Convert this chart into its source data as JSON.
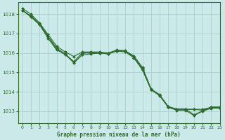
{
  "title": "Graphe pression niveau de la mer (hPa)",
  "background_color": "#cce9e9",
  "grid_color": "#add4d4",
  "line_color": "#2d6b2d",
  "marker_color": "#2d6b2d",
  "xlim": [
    -0.5,
    23
  ],
  "ylim": [
    1012.4,
    1018.6
  ],
  "yticks": [
    1013,
    1014,
    1015,
    1016,
    1017,
    1018
  ],
  "xticks": [
    0,
    1,
    2,
    3,
    4,
    5,
    6,
    7,
    8,
    9,
    10,
    11,
    12,
    13,
    14,
    15,
    16,
    17,
    18,
    19,
    20,
    21,
    22,
    23
  ],
  "series": [
    [
      1018.2,
      1017.9,
      1017.5,
      1016.9,
      1016.2,
      1015.9,
      1015.5,
      1016.0,
      1016.0,
      1016.0,
      1015.95,
      1016.1,
      1016.1,
      1015.8,
      1015.2,
      1014.1,
      1013.8,
      1013.2,
      1013.1,
      1013.1,
      1012.8,
      1013.0,
      1013.2,
      1013.2
    ],
    [
      1018.2,
      1017.9,
      1017.5,
      1016.85,
      1016.2,
      1015.9,
      1015.5,
      1016.0,
      1016.0,
      1016.0,
      1015.95,
      1016.1,
      1016.1,
      1015.8,
      1015.2,
      1014.1,
      1013.8,
      1013.2,
      1013.1,
      1013.1,
      1013.1,
      1013.05,
      1013.2,
      1013.2
    ],
    [
      1018.2,
      1017.9,
      1017.5,
      1016.85,
      1016.2,
      1015.9,
      1015.55,
      1016.0,
      1016.0,
      1016.0,
      1015.95,
      1016.1,
      1016.1,
      1015.85,
      1015.25,
      1014.15,
      1013.85,
      1013.25,
      1013.1,
      1013.1,
      1013.1,
      1013.1,
      1013.2,
      1013.2
    ]
  ],
  "series2": [
    [
      1018.3,
      1018.0,
      1017.5,
      1016.7,
      1016.25,
      1016.0,
      1015.8,
      1016.0,
      1016.05,
      1016.0,
      1016.0,
      1016.1,
      1016.05,
      1015.65,
      1015.05,
      1014.05,
      1013.75,
      1013.1,
      1013.05,
      1013.05,
      1012.8,
      1013.0,
      1013.15,
      1013.15
    ]
  ]
}
